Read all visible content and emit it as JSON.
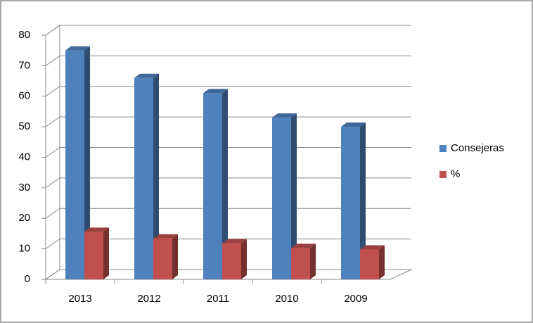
{
  "chart_data": {
    "type": "bar3d",
    "categories": [
      "2013",
      "2012",
      "2011",
      "2010",
      "2009"
    ],
    "series": [
      {
        "name": "Consejeras",
        "color": "#4f81bd",
        "values": [
          75,
          66,
          61,
          53,
          50
        ]
      },
      {
        "name": "%",
        "color": "#c0504d",
        "values": [
          15.6,
          13.4,
          11.8,
          10.3,
          9.8
        ]
      }
    ],
    "ylim": [
      0,
      80
    ],
    "yticks": [
      0,
      10,
      20,
      30,
      40,
      50,
      60,
      70,
      80
    ],
    "grid": true,
    "legend": "right"
  }
}
